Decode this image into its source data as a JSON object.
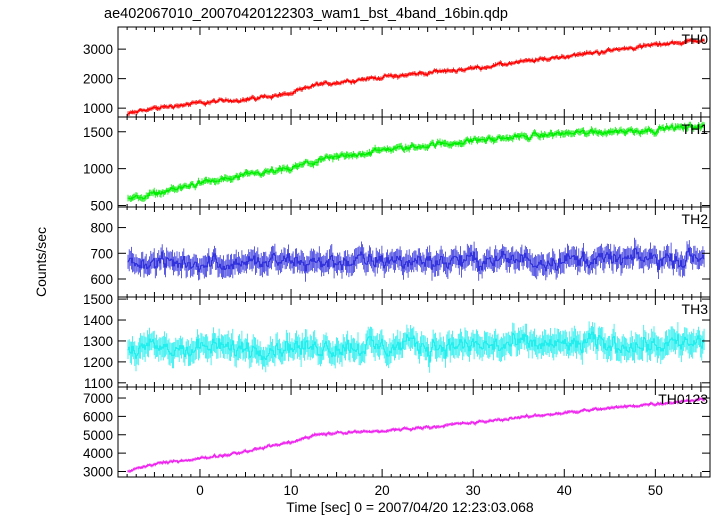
{
  "chart_data": {
    "type": "line",
    "title": "ae402067010_20070420122303_wam1_bst_4band_16bin.qdp",
    "xlabel": "Time [sec] 0 = 2007/04/20 12:23:03.068",
    "ylabel": "Counts/sec",
    "xlim": [
      -9,
      56
    ],
    "x_ticks": [
      0,
      10,
      20,
      30,
      40,
      50
    ],
    "panels": [
      {
        "name": "TH0",
        "color": "#ff0000",
        "ylim": [
          700,
          3750
        ],
        "y_ticks": [
          1000,
          2000,
          3000
        ],
        "trend": [
          [
            -8,
            800
          ],
          [
            -5,
            1000
          ],
          [
            0,
            1180
          ],
          [
            5,
            1300
          ],
          [
            10,
            1500
          ],
          [
            13,
            1800
          ],
          [
            20,
            2050
          ],
          [
            30,
            2350
          ],
          [
            40,
            2750
          ],
          [
            50,
            3150
          ],
          [
            55,
            3300
          ]
        ],
        "noise": 90
      },
      {
        "name": "TH1",
        "color": "#00ee00",
        "ylim": [
          480,
          1700
        ],
        "y_ticks": [
          500,
          1000,
          1500
        ],
        "trend": [
          [
            -8,
            580
          ],
          [
            -5,
            660
          ],
          [
            0,
            800
          ],
          [
            5,
            900
          ],
          [
            10,
            1000
          ],
          [
            13,
            1110
          ],
          [
            20,
            1250
          ],
          [
            30,
            1380
          ],
          [
            40,
            1480
          ],
          [
            50,
            1530
          ],
          [
            55,
            1580
          ]
        ],
        "noise": 55
      },
      {
        "name": "TH2",
        "color": "#3333dd",
        "ylim": [
          530,
          880
        ],
        "y_ticks": [
          600,
          700,
          800
        ],
        "trend": [
          [
            -8,
            660
          ],
          [
            55,
            680
          ]
        ],
        "noise": 50
      },
      {
        "name": "TH3",
        "color": "#22eeee",
        "ylim": [
          1080,
          1510
        ],
        "y_ticks": [
          1100,
          1200,
          1300,
          1400,
          1500
        ],
        "trend": [
          [
            -8,
            1260
          ],
          [
            55,
            1290
          ]
        ],
        "noise": 70
      },
      {
        "name": "TH0123",
        "color": "#ee22ee",
        "ylim": [
          2700,
          7600
        ],
        "y_ticks": [
          3000,
          4000,
          5000,
          6000,
          7000
        ],
        "trend": [
          [
            -8,
            3000
          ],
          [
            -5,
            3400
          ],
          [
            0,
            3700
          ],
          [
            5,
            4100
          ],
          [
            10,
            4600
          ],
          [
            13,
            5050
          ],
          [
            20,
            5200
          ],
          [
            30,
            5650
          ],
          [
            40,
            6200
          ],
          [
            50,
            6700
          ],
          [
            55,
            6900
          ]
        ],
        "noise": 110
      }
    ],
    "grid": false,
    "legend": "none"
  }
}
